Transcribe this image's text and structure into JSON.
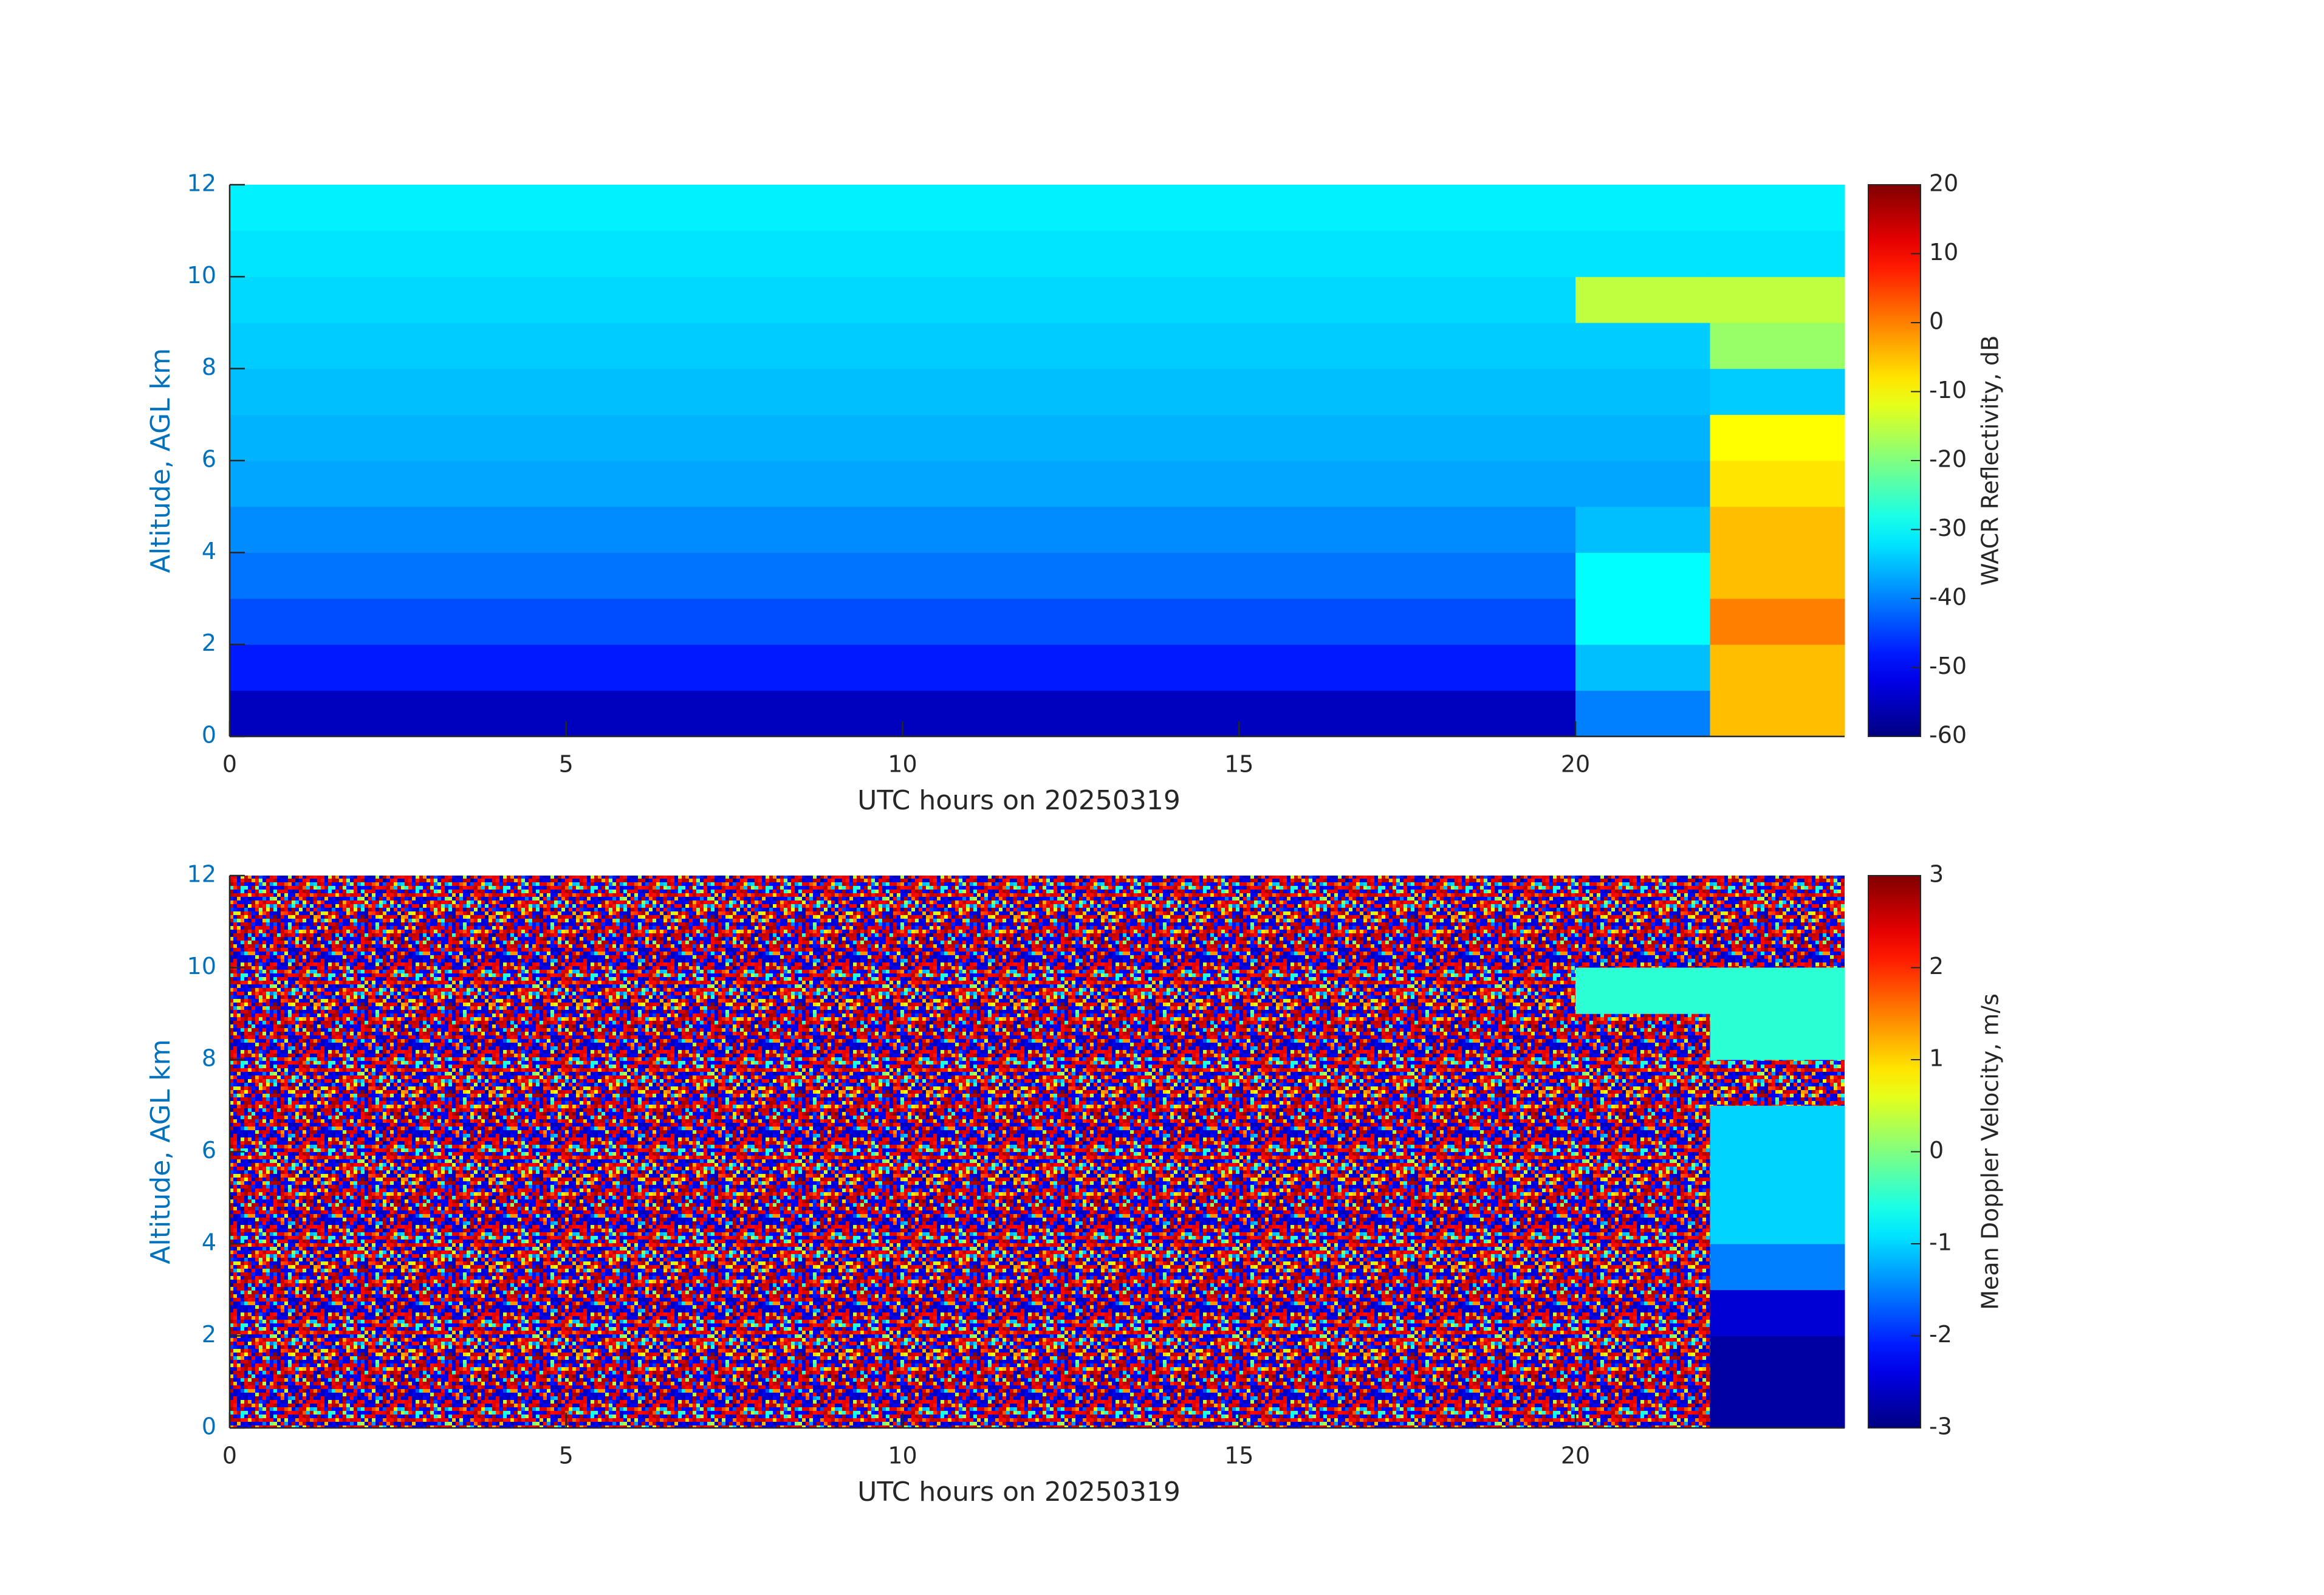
{
  "chart_data": [
    {
      "type": "heatmap",
      "xlabel": "UTC hours on 20250319",
      "ylabel": "Altitude, AGL km",
      "colorbar_label": "WACR Reflectivity, dB",
      "colormap": "jet",
      "xlim": [
        0,
        24
      ],
      "xticks": [
        0,
        5,
        10,
        15,
        20
      ],
      "ylim": [
        0,
        12
      ],
      "yticks": [
        0,
        2,
        4,
        6,
        8,
        10,
        12
      ],
      "clim": [
        -60,
        20
      ],
      "cticks": [
        -60,
        -50,
        -40,
        -30,
        -20,
        -10,
        0,
        10,
        20
      ],
      "x": [
        1,
        3,
        5,
        7,
        9,
        11,
        13,
        15,
        17,
        19,
        21,
        23
      ],
      "y": [
        0.5,
        1.5,
        2.5,
        3.5,
        4.5,
        5.5,
        6.5,
        7.5,
        8.5,
        9.5,
        10.5,
        11.5
      ],
      "z": [
        [
          -55,
          -55,
          -55,
          -55,
          -55,
          -55,
          -55,
          -55,
          -55,
          -55,
          -40,
          -5
        ],
        [
          -48,
          -48,
          -48,
          -48,
          -48,
          -48,
          -48,
          -48,
          -48,
          -48,
          -35,
          -5
        ],
        [
          -44,
          -44,
          -44,
          -44,
          -44,
          -44,
          -44,
          -44,
          -44,
          -44,
          -30,
          0
        ],
        [
          -41,
          -41,
          -41,
          -41,
          -41,
          -41,
          -41,
          -41,
          -41,
          -41,
          -30,
          -5
        ],
        [
          -39,
          -39,
          -39,
          -39,
          -39,
          -39,
          -39,
          -39,
          -39,
          -39,
          -35,
          -5
        ],
        [
          -37,
          -37,
          -37,
          -37,
          -37,
          -37,
          -37,
          -37,
          -37,
          -37,
          -37,
          -8
        ],
        [
          -36,
          -36,
          -36,
          -36,
          -36,
          -36,
          -36,
          -36,
          -36,
          -36,
          -36,
          -10
        ],
        [
          -35,
          -35,
          -35,
          -35,
          -35,
          -35,
          -35,
          -35,
          -35,
          -35,
          -35,
          -34
        ],
        [
          -34,
          -34,
          -34,
          -34,
          -34,
          -34,
          -34,
          -34,
          -34,
          -34,
          -34,
          -18
        ],
        [
          -33,
          -33,
          -33,
          -33,
          -33,
          -33,
          -33,
          -33,
          -33,
          -33,
          -15,
          -15
        ],
        [
          -32,
          -32,
          -32,
          -32,
          -32,
          -32,
          -32,
          -32,
          -32,
          -32,
          -32,
          -32
        ],
        [
          -31,
          -31,
          -31,
          -31,
          -31,
          -31,
          -31,
          -31,
          -31,
          -31,
          -31,
          -31
        ]
      ]
    },
    {
      "type": "heatmap",
      "xlabel": "UTC hours on 20250319",
      "ylabel": "Altitude, AGL km",
      "colorbar_label": "Mean Doppler Velocity, m/s",
      "colormap": "jet",
      "xlim": [
        0,
        24
      ],
      "xticks": [
        0,
        5,
        10,
        15,
        20
      ],
      "ylim": [
        0,
        12
      ],
      "yticks": [
        0,
        2,
        4,
        6,
        8,
        10,
        12
      ],
      "clim": [
        -3,
        3
      ],
      "cticks": [
        -3,
        -2,
        -1,
        0,
        1,
        2,
        3
      ],
      "x": [
        1,
        3,
        5,
        7,
        9,
        11,
        13,
        15,
        17,
        19,
        21,
        23
      ],
      "y": [
        0.5,
        1.5,
        2.5,
        3.5,
        4.5,
        5.5,
        6.5,
        7.5,
        8.5,
        9.5,
        10.5,
        11.5
      ],
      "z": [
        [
          null,
          null,
          null,
          null,
          null,
          null,
          null,
          null,
          null,
          null,
          null,
          -2.8
        ],
        [
          null,
          null,
          null,
          null,
          null,
          null,
          null,
          null,
          null,
          null,
          null,
          -2.8
        ],
        [
          null,
          null,
          null,
          null,
          null,
          null,
          null,
          null,
          null,
          null,
          null,
          -2.5
        ],
        [
          null,
          null,
          null,
          null,
          null,
          null,
          null,
          null,
          null,
          null,
          null,
          -1.5
        ],
        [
          null,
          null,
          null,
          null,
          null,
          null,
          null,
          null,
          null,
          null,
          null,
          -1
        ],
        [
          null,
          null,
          null,
          null,
          null,
          null,
          null,
          null,
          null,
          null,
          null,
          -1
        ],
        [
          null,
          null,
          null,
          null,
          null,
          null,
          null,
          null,
          null,
          null,
          null,
          -1
        ],
        [
          null,
          null,
          null,
          null,
          null,
          null,
          null,
          null,
          null,
          null,
          null,
          null
        ],
        [
          null,
          null,
          null,
          null,
          null,
          null,
          null,
          null,
          null,
          null,
          null,
          -0.5
        ],
        [
          null,
          null,
          null,
          null,
          null,
          null,
          null,
          null,
          null,
          null,
          -0.5,
          -0.5
        ],
        [
          null,
          null,
          null,
          null,
          null,
          null,
          null,
          null,
          null,
          null,
          null,
          null
        ],
        [
          null,
          null,
          null,
          null,
          null,
          null,
          null,
          null,
          null,
          null,
          null,
          null
        ]
      ]
    }
  ]
}
